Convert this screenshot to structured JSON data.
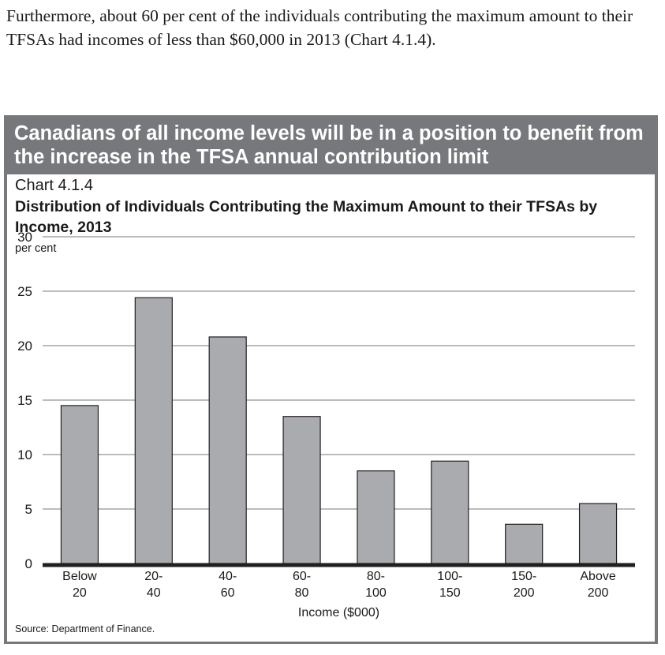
{
  "intro_text": "Furthermore, about 60 per cent of the individuals contributing the maximum amount to their TFSAs had incomes of less than $60,000 in 2013 (Chart 4.1.4).",
  "panel": {
    "heading": "Canadians of all income levels will be in a position to benefit from the increase in the TFSA annual contribution limit",
    "chart_number": "Chart 4.1.4",
    "source": "Source: Department of Finance.",
    "colors": {
      "panel_background": "#77787b",
      "bar_fill": "#aaabae",
      "bar_stroke": "#231f20",
      "gridline": "#939598",
      "axis": "#231f20"
    }
  },
  "chart_data": {
    "type": "bar",
    "title": "Distribution of Individuals Contributing the Maximum Amount to their TFSAs by Income, 2013",
    "ylabel": "per cent",
    "xlabel": "Income ($000)",
    "categories": [
      [
        "Below",
        "20"
      ],
      [
        "20-",
        "40"
      ],
      [
        "40-",
        "60"
      ],
      [
        "60-",
        "80"
      ],
      [
        "80-",
        "100"
      ],
      [
        "100-",
        "150"
      ],
      [
        "150-",
        "200"
      ],
      [
        "Above",
        "200"
      ]
    ],
    "values": [
      14.5,
      24.4,
      20.8,
      13.5,
      8.5,
      9.4,
      3.6,
      5.5
    ],
    "ylim": [
      0,
      30
    ],
    "yticks": [
      0,
      5,
      10,
      15,
      20,
      25,
      30
    ],
    "grid": true,
    "legend": "none"
  }
}
